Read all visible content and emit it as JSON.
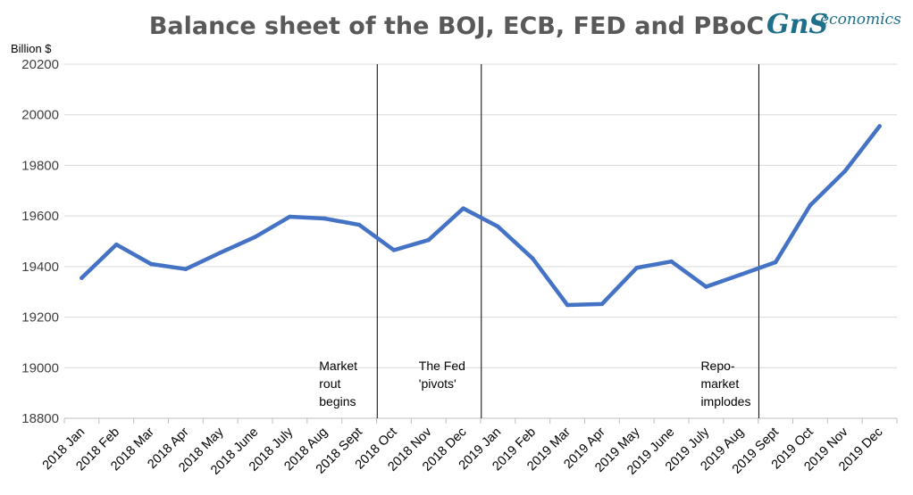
{
  "chart_data": {
    "type": "line",
    "title": "Balance sheet of the BOJ, ECB, FED and PBoC",
    "ylabel": "Billion $",
    "xlabel": "",
    "ylim": [
      18800,
      20200
    ],
    "yticks": [
      18800,
      19000,
      19200,
      19400,
      19600,
      19800,
      20000,
      20200
    ],
    "grid": true,
    "legend": "none",
    "categories": [
      "2018 Jan",
      "2018 Feb",
      "2018 Mar",
      "2018 Apr",
      "2018 May",
      "2018 June",
      "2018 July",
      "2018 Aug",
      "2018 Sept",
      "2018 Oct",
      "2018 Nov",
      "2018 Dec",
      "2019 Jan",
      "2019 Feb",
      "2019 Mar",
      "2019 Apr",
      "2019 May",
      "2019 June",
      "2019 July",
      "2019 Aug",
      "2019 Sept",
      "2019 Oct",
      "2019 Nov",
      "2019 Dec"
    ],
    "series": [
      {
        "color": "#4472c4",
        "values": [
          19355,
          19487,
          19410,
          19390,
          19455,
          19517,
          19597,
          19590,
          19565,
          19465,
          19505,
          19630,
          19558,
          19432,
          19248,
          19252,
          19395,
          19420,
          19320,
          19368,
          19417,
          19642,
          19777,
          19955
        ]
      }
    ],
    "annotations": [
      {
        "after": "2018 Sept",
        "lines": [
          "Market",
          "rout",
          "begins"
        ]
      },
      {
        "after": "2018 Dec",
        "lines": [
          "The Fed",
          "'pivots'"
        ]
      },
      {
        "after": "2019 Aug",
        "lines": [
          "Repo-",
          "market",
          "implodes"
        ]
      }
    ]
  },
  "logo": {
    "mark": "GnS",
    "text": "economics"
  }
}
